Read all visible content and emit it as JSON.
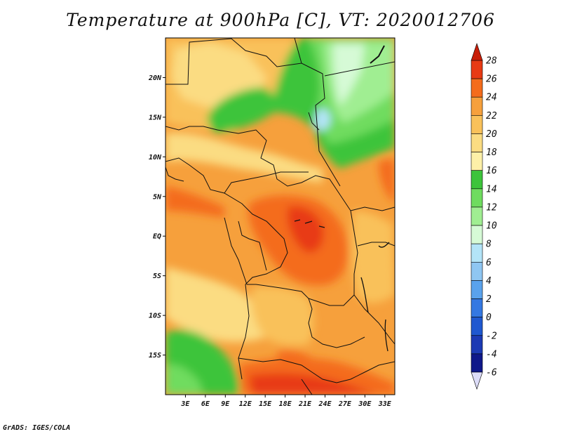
{
  "title": "Temperature at 900hPa [C], VT: 2020012706",
  "credit": "GrADS: IGES/COLA",
  "map": {
    "lat_labels": [
      "20N",
      "15N",
      "10N",
      "5N",
      "EQ",
      "5S",
      "10S",
      "15S"
    ],
    "lat_values": [
      20,
      15,
      10,
      5,
      0,
      -5,
      -10,
      -15
    ],
    "lon_labels": [
      "3E",
      "6E",
      "9E",
      "12E",
      "15E",
      "18E",
      "21E",
      "24E",
      "27E",
      "30E",
      "33E"
    ],
    "lon_values": [
      3,
      6,
      9,
      12,
      15,
      18,
      21,
      24,
      27,
      30,
      33
    ],
    "lon_range": [
      0,
      34.5
    ],
    "lat_range": [
      -20,
      25
    ]
  },
  "colorbar": {
    "labels": [
      "28",
      "26",
      "24",
      "22",
      "20",
      "18",
      "16",
      "14",
      "12",
      "10",
      "8",
      "6",
      "4",
      "2",
      "0",
      "-2",
      "-4",
      "-6"
    ],
    "colors": [
      "#e83a14",
      "#f46c1c",
      "#f6a03c",
      "#f9c15a",
      "#fbdc82",
      "#fdf0a8",
      "#3dc43b",
      "#6fdc5f",
      "#a0ee92",
      "#d6fad6",
      "#b3e4f8",
      "#8fc6f2",
      "#5aa2ec",
      "#3478e2",
      "#1f58d0",
      "#1c3ab4",
      "#0f188a"
    ],
    "over_color": "#c81e08",
    "under_color": "#dcdcf8"
  }
}
